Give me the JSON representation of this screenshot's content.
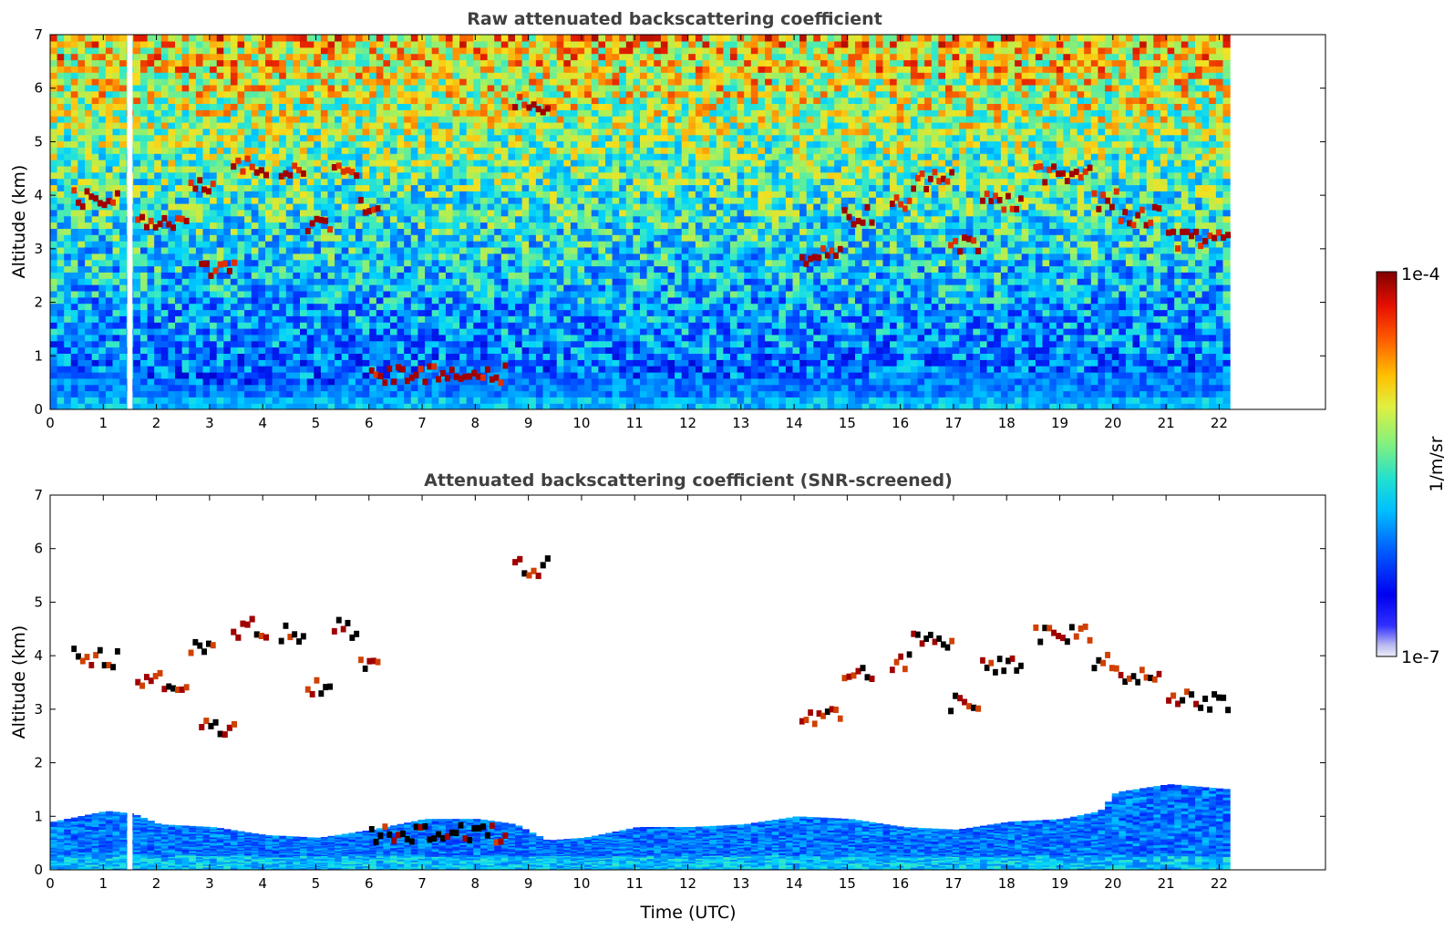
{
  "chart_data": [
    {
      "type": "heatmap",
      "title": "Raw attenuated backscattering coefficient",
      "xlabel": "",
      "ylabel": "Altitude (km)",
      "xlim": [
        0,
        24
      ],
      "ylim": [
        0,
        7
      ],
      "x_ticks": [
        "0",
        "1",
        "2",
        "3",
        "4",
        "5",
        "6",
        "7",
        "8",
        "9",
        "10",
        "11",
        "12",
        "13",
        "14",
        "15",
        "16",
        "17",
        "18",
        "19",
        "20",
        "21",
        "22"
      ],
      "y_ticks": [
        "0",
        "1",
        "2",
        "3",
        "4",
        "5",
        "6",
        "7"
      ],
      "data_extent_x": [
        0,
        22.2
      ],
      "gap_x": [
        1.45,
        1.55
      ],
      "boundary_layer": {
        "x": [
          0,
          1,
          2,
          3,
          4,
          5,
          6,
          7,
          8,
          8.7,
          9.5,
          10,
          11,
          12,
          13,
          14,
          15,
          16,
          17,
          18,
          19,
          20,
          21,
          22.2
        ],
        "top_km": [
          0.6,
          0.65,
          0.45,
          0.4,
          0.35,
          0.4,
          0.5,
          0.65,
          0.75,
          0.7,
          0.55,
          0.55,
          0.55,
          0.55,
          0.55,
          0.55,
          0.55,
          0.6,
          0.6,
          0.6,
          0.6,
          0.6,
          0.6,
          0.6
        ]
      },
      "cloud_layers": [
        {
          "x": [
            0.4,
            1.3
          ],
          "alt_km": 3.95
        },
        {
          "x": [
            1.6,
            2.6
          ],
          "alt_km": 3.5
        },
        {
          "x": [
            2.6,
            3.1
          ],
          "alt_km": 4.2
        },
        {
          "x": [
            2.8,
            3.5
          ],
          "alt_km": 2.6
        },
        {
          "x": [
            3.4,
            4.1
          ],
          "alt_km": 4.5
        },
        {
          "x": [
            4.3,
            4.8
          ],
          "alt_km": 4.4
        },
        {
          "x": [
            4.8,
            5.3
          ],
          "alt_km": 3.4
        },
        {
          "x": [
            5.3,
            5.8
          ],
          "alt_km": 4.5
        },
        {
          "x": [
            5.8,
            6.2
          ],
          "alt_km": 3.8
        },
        {
          "x": [
            6.0,
            8.6
          ],
          "alt_km": 0.65
        },
        {
          "x": [
            8.7,
            9.4
          ],
          "alt_km": 5.65
        },
        {
          "x": [
            14.1,
            14.9
          ],
          "alt_km": 2.85
        },
        {
          "x": [
            14.9,
            15.5
          ],
          "alt_km": 3.6
        },
        {
          "x": [
            15.8,
            16.2
          ],
          "alt_km": 3.85
        },
        {
          "x": [
            16.2,
            17.0
          ],
          "alt_km": 4.25
        },
        {
          "x": [
            16.9,
            17.5
          ],
          "alt_km": 3.1
        },
        {
          "x": [
            17.5,
            18.3
          ],
          "alt_km": 3.85
        },
        {
          "x": [
            18.5,
            19.6
          ],
          "alt_km": 4.4
        },
        {
          "x": [
            19.6,
            20.1
          ],
          "alt_km": 3.9
        },
        {
          "x": [
            20.1,
            20.9
          ],
          "alt_km": 3.6
        },
        {
          "x": [
            21.0,
            22.2
          ],
          "alt_km": 3.15
        }
      ]
    },
    {
      "type": "heatmap",
      "title": "Attenuated backscattering coefficient (SNR-screened)",
      "xlabel": "Time (UTC)",
      "ylabel": "Altitude (km)",
      "xlim": [
        0,
        24
      ],
      "ylim": [
        0,
        7
      ],
      "x_ticks": [
        "0",
        "1",
        "2",
        "3",
        "4",
        "5",
        "6",
        "7",
        "8",
        "9",
        "10",
        "11",
        "12",
        "13",
        "14",
        "15",
        "16",
        "17",
        "18",
        "19",
        "20",
        "21",
        "22"
      ],
      "y_ticks": [
        "0",
        "1",
        "2",
        "3",
        "4",
        "5",
        "6",
        "7"
      ],
      "data_extent_x": [
        0,
        22.2
      ],
      "gap_x": [
        1.45,
        1.55
      ],
      "boundary_layer": {
        "x": [
          0,
          1,
          1.5,
          2,
          3,
          4,
          5,
          6,
          7,
          8,
          8.7,
          9.3,
          10,
          11,
          12,
          13,
          14,
          15,
          16,
          17,
          18,
          19,
          19.7,
          20,
          21,
          22.2
        ],
        "top_km": [
          0.9,
          1.1,
          1.05,
          0.85,
          0.8,
          0.65,
          0.6,
          0.75,
          0.95,
          0.95,
          0.85,
          0.55,
          0.6,
          0.8,
          0.8,
          0.85,
          1.0,
          0.95,
          0.8,
          0.75,
          0.9,
          0.95,
          1.1,
          1.45,
          1.6,
          1.5
        ]
      }
    }
  ],
  "colorbar": {
    "label": "1/m/sr",
    "min_label": "1e-7",
    "max_label": "1e-4",
    "scale": "log",
    "colormap": "jet"
  }
}
